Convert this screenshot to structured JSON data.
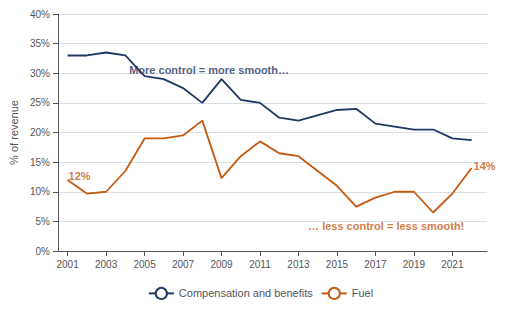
{
  "chart_data": {
    "type": "line",
    "x": [
      2001,
      2002,
      2003,
      2004,
      2005,
      2006,
      2007,
      2008,
      2009,
      2010,
      2011,
      2012,
      2013,
      2015,
      2016,
      2017,
      2018,
      2019,
      2020,
      2021,
      2022
    ],
    "series": [
      {
        "name": "Compensation and benefits",
        "color": "#1f3864",
        "values": [
          0.33,
          0.33,
          0.335,
          0.33,
          0.295,
          0.29,
          0.275,
          0.25,
          0.29,
          0.255,
          0.25,
          0.225,
          0.22,
          0.238,
          0.24,
          0.215,
          0.21,
          0.205,
          0.205,
          0.19,
          0.187
        ]
      },
      {
        "name": "Fuel",
        "color": "#c55a11",
        "values": [
          0.12,
          0.097,
          0.1,
          0.135,
          0.19,
          0.19,
          0.195,
          0.22,
          0.123,
          0.16,
          0.185,
          0.165,
          0.16,
          0.11,
          0.075,
          0.09,
          0.1,
          0.1,
          0.065,
          0.097,
          0.14
        ]
      }
    ],
    "ylabel": "% of revenue",
    "xlim": [
      2000.5,
      2022.8
    ],
    "xticks": [
      2001,
      2003,
      2005,
      2007,
      2009,
      2011,
      2013,
      2015,
      2017,
      2019,
      2021
    ],
    "ylim": [
      0,
      0.4
    ],
    "yticks": [
      {
        "value": 0,
        "label": "0%"
      },
      {
        "value": 0.05,
        "label": "5%"
      },
      {
        "value": 0.1,
        "label": "10%"
      },
      {
        "value": 0.15,
        "label": "15%"
      },
      {
        "value": 0.2,
        "label": "20%"
      },
      {
        "value": 0.25,
        "label": "25%"
      },
      {
        "value": 0.3,
        "label": "30%"
      },
      {
        "value": 0.35,
        "label": "35%"
      },
      {
        "value": 0.4,
        "label": "40%"
      }
    ],
    "grid": true,
    "legend": "bottom",
    "annotations": [
      {
        "text": "More control = more smooth…",
        "x": 2004.2,
        "y": 0.305,
        "color": "#1f3864"
      },
      {
        "text": "… less control = less smooth!",
        "x": 2013.5,
        "y": 0.042,
        "color": "#c55a11"
      },
      {
        "text": "12%",
        "x": 2001.05,
        "y": 0.127,
        "color": "#c55a11"
      },
      {
        "text": "14%",
        "x": 2022.1,
        "y": 0.143,
        "color": "#c55a11"
      }
    ]
  }
}
